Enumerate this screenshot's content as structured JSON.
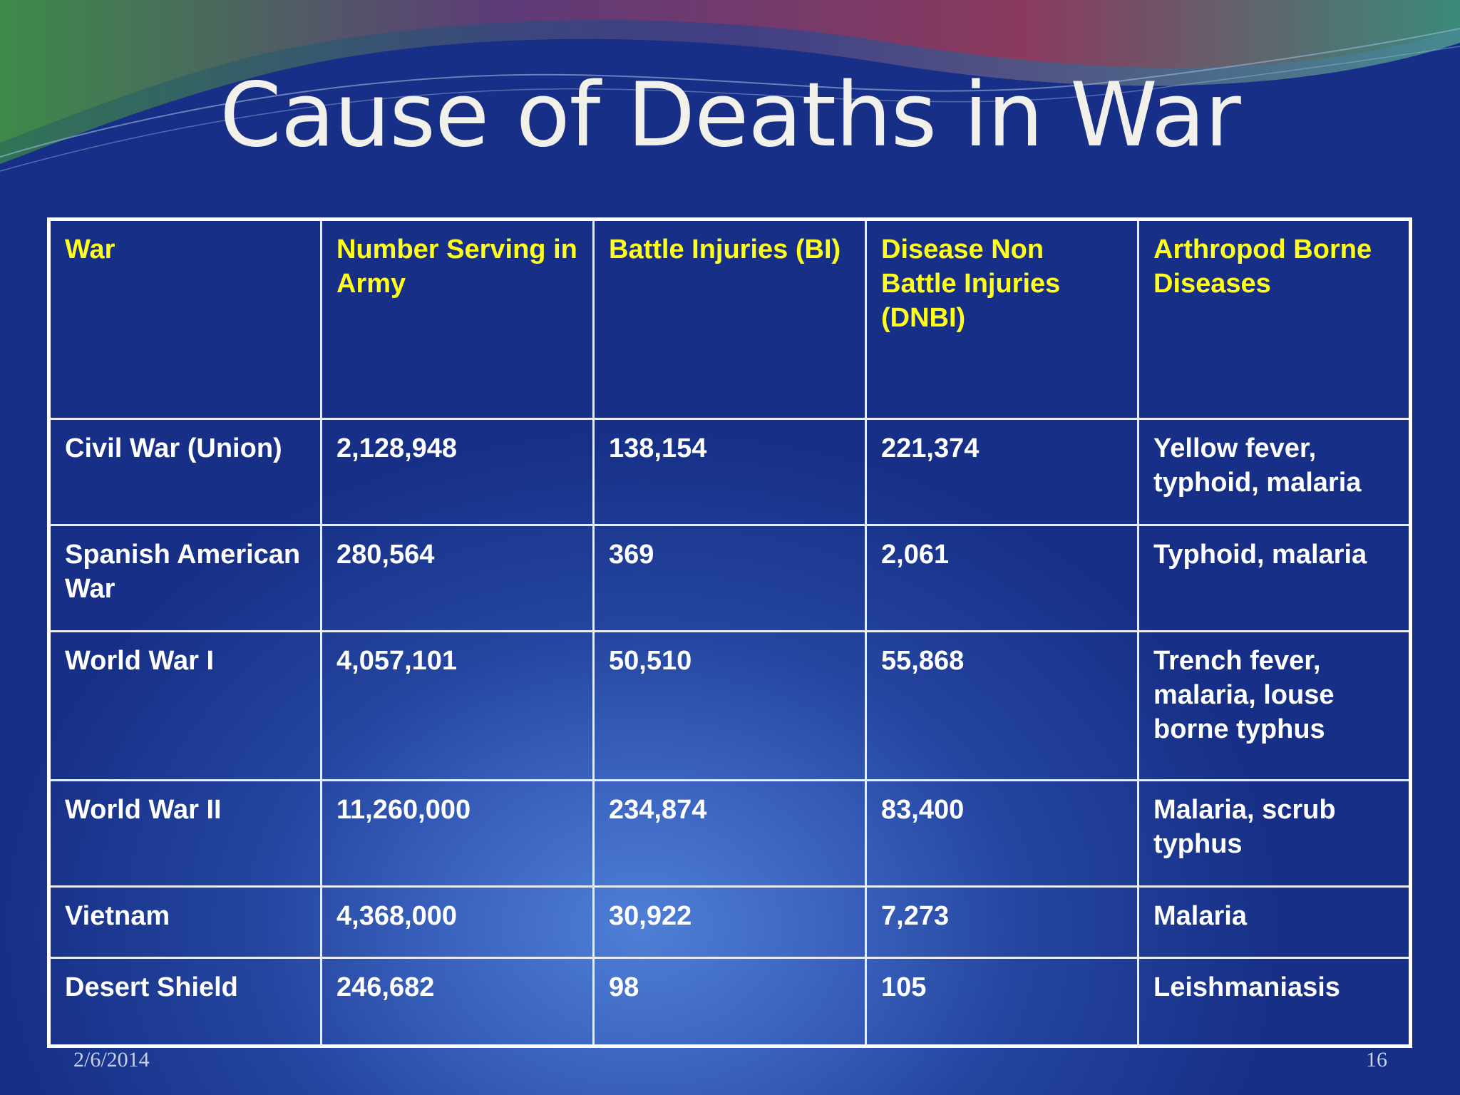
{
  "slide": {
    "title": "Cause of Deaths in War",
    "date": "2/6/2014",
    "page_number": "16"
  },
  "colors": {
    "header_text": "#ffff1a",
    "body_text": "#ffffff",
    "background_dark": "#172f86",
    "background_light": "#4f7fd6"
  },
  "table": {
    "headers": [
      "War",
      "Number Serving in Army",
      "Battle Injuries (BI)",
      "Disease Non Battle Injuries (DNBI)",
      "Arthropod Borne Diseases"
    ],
    "rows": [
      [
        "Civil War (Union)",
        "2,128,948",
        "138,154",
        "221,374",
        "Yellow fever, typhoid, malaria"
      ],
      [
        "Spanish American War",
        "280,564",
        "369",
        "2,061",
        "Typhoid, malaria"
      ],
      [
        "World War I",
        "4,057,101",
        "50,510",
        "55,868",
        "Trench fever, malaria, louse borne typhus"
      ],
      [
        "World War II",
        "11,260,000",
        "234,874",
        "83,400",
        "Malaria, scrub typhus"
      ],
      [
        "Vietnam",
        "4,368,000",
        "30,922",
        "7,273",
        "Malaria"
      ],
      [
        "Desert Shield",
        "246,682",
        "98",
        "105",
        "Leishmaniasis"
      ]
    ]
  }
}
